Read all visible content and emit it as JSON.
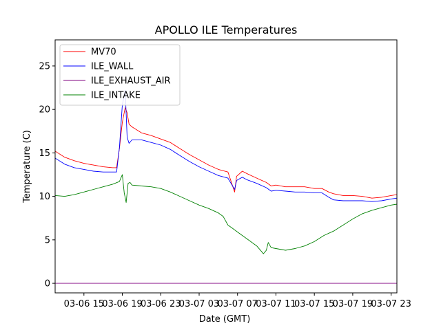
{
  "chart_data": {
    "type": "line",
    "title": "APOLLO ILE Temperatures",
    "xlabel": "Date (GMT)",
    "ylabel": "Temperature (C)",
    "xlim": [
      12,
      47.6
    ],
    "ylim": [
      -1.1,
      28
    ],
    "x_unit": "hours since 03-06 00:00 GMT",
    "grid": false,
    "legend_position": "upper-left",
    "yticks": [
      {
        "value": 0,
        "label": "0"
      },
      {
        "value": 5,
        "label": "5"
      },
      {
        "value": 10,
        "label": "10"
      },
      {
        "value": 15,
        "label": "15"
      },
      {
        "value": 20,
        "label": "20"
      },
      {
        "value": 25,
        "label": "25"
      }
    ],
    "xticks": [
      {
        "value": 15,
        "label": "03-06 15"
      },
      {
        "value": 19,
        "label": "03-06 19"
      },
      {
        "value": 23,
        "label": "03-06 23"
      },
      {
        "value": 27,
        "label": "03-07 03"
      },
      {
        "value": 31,
        "label": "03-07 07"
      },
      {
        "value": 35,
        "label": "03-07 11"
      },
      {
        "value": 39,
        "label": "03-07 15"
      },
      {
        "value": 43,
        "label": "03-07 19"
      },
      {
        "value": 47,
        "label": "03-07 23"
      }
    ],
    "series": [
      {
        "name": "MV70",
        "color": "#ff0000",
        "x": [
          12.0,
          13.0,
          14.0,
          15.0,
          16.0,
          17.0,
          18.0,
          18.4,
          18.7,
          19.0,
          19.3,
          19.5,
          19.7,
          20.0,
          21.0,
          22.0,
          23.0,
          24.0,
          25.0,
          26.0,
          27.0,
          28.0,
          29.0,
          30.0,
          30.7,
          30.9,
          31.0,
          31.5,
          32.0,
          33.0,
          34.0,
          34.5,
          35.0,
          36.0,
          37.0,
          38.0,
          39.0,
          39.8,
          40.5,
          41.0,
          42.0,
          43.0,
          44.0,
          45.0,
          46.0,
          47.0,
          47.6
        ],
        "y": [
          15.2,
          14.5,
          14.1,
          13.8,
          13.6,
          13.4,
          13.3,
          13.3,
          15.5,
          18.5,
          20.2,
          19.6,
          18.3,
          18.0,
          17.3,
          17.0,
          16.6,
          16.2,
          15.5,
          14.8,
          14.2,
          13.6,
          13.1,
          12.8,
          10.5,
          12.3,
          12.4,
          12.9,
          12.6,
          12.1,
          11.6,
          11.2,
          11.3,
          11.1,
          11.1,
          11.1,
          10.9,
          10.9,
          10.5,
          10.3,
          10.1,
          10.1,
          10.0,
          9.8,
          9.9,
          10.1,
          10.2
        ]
      },
      {
        "name": "ILE_WALL",
        "color": "#0000ff",
        "x": [
          12.0,
          13.0,
          14.0,
          15.0,
          16.0,
          17.0,
          18.0,
          18.4,
          18.7,
          19.0,
          19.3,
          19.5,
          19.7,
          20.0,
          21.0,
          22.0,
          23.0,
          24.0,
          25.0,
          26.0,
          27.0,
          28.0,
          29.0,
          30.0,
          30.7,
          30.9,
          31.0,
          31.5,
          32.0,
          33.0,
          34.0,
          34.5,
          35.0,
          36.0,
          37.0,
          38.0,
          39.0,
          39.8,
          40.5,
          41.0,
          42.0,
          43.0,
          44.0,
          45.0,
          46.0,
          47.0,
          47.6
        ],
        "y": [
          14.4,
          13.7,
          13.3,
          13.1,
          12.9,
          12.8,
          12.8,
          12.8,
          15.6,
          20.5,
          22.2,
          16.8,
          16.1,
          16.5,
          16.5,
          16.2,
          15.9,
          15.4,
          14.7,
          14.0,
          13.4,
          12.9,
          12.4,
          12.1,
          10.8,
          11.8,
          11.9,
          12.2,
          11.9,
          11.5,
          11.0,
          10.6,
          10.7,
          10.6,
          10.5,
          10.5,
          10.4,
          10.4,
          9.9,
          9.6,
          9.5,
          9.5,
          9.5,
          9.4,
          9.5,
          9.7,
          9.8
        ]
      },
      {
        "name": "ILE_EXHAUST_AIR",
        "color": "#800080",
        "x": [
          12.0,
          47.6
        ],
        "y": [
          0.0,
          0.0
        ]
      },
      {
        "name": "ILE_INTAKE",
        "color": "#008000",
        "x": [
          12.0,
          13.0,
          14.0,
          15.0,
          16.0,
          17.0,
          18.0,
          18.7,
          19.0,
          19.2,
          19.4,
          19.6,
          19.8,
          20.0,
          21.0,
          22.0,
          23.0,
          24.0,
          25.0,
          26.0,
          27.0,
          28.0,
          29.0,
          29.5,
          30.0,
          30.5,
          31.0,
          32.0,
          33.0,
          33.7,
          34.0,
          34.2,
          34.5,
          35.0,
          36.0,
          37.0,
          38.0,
          39.0,
          40.0,
          41.0,
          42.0,
          43.0,
          44.0,
          45.0,
          46.0,
          47.0,
          47.6
        ],
        "y": [
          10.1,
          10.0,
          10.2,
          10.5,
          10.8,
          11.1,
          11.4,
          11.7,
          12.5,
          10.4,
          9.3,
          11.5,
          11.6,
          11.3,
          11.2,
          11.1,
          10.9,
          10.5,
          10.0,
          9.5,
          9.0,
          8.6,
          8.1,
          7.7,
          6.7,
          6.3,
          5.9,
          5.1,
          4.3,
          3.4,
          3.8,
          4.7,
          4.1,
          4.0,
          3.8,
          4.0,
          4.3,
          4.8,
          5.5,
          6.0,
          6.7,
          7.4,
          8.0,
          8.4,
          8.7,
          9.0,
          9.1
        ]
      }
    ]
  }
}
